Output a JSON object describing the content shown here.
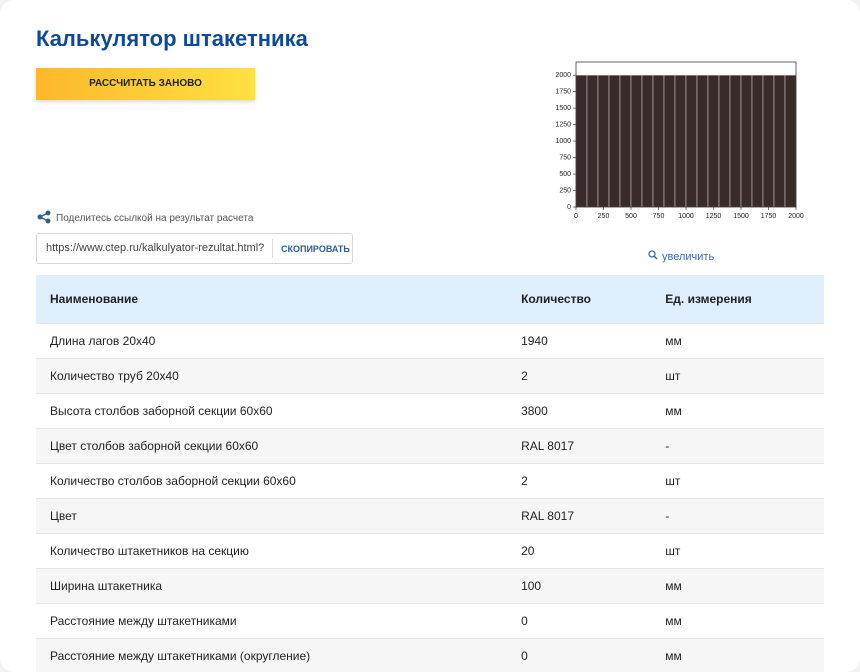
{
  "header": {
    "title": "Калькулятор штакетника",
    "button": "РАССЧИТАТЬ ЗАНОВО"
  },
  "share": {
    "label": "Поделитесь ссылкой на результат расчета",
    "url": "https://www.ctep.ru/kalkulyator-rezultat.html?",
    "copy": "СКОПИРОВАТЬ"
  },
  "zoom": "увеличить",
  "chart_data": {
    "type": "histogram",
    "bins": [
      0,
      100,
      200,
      300,
      400,
      500,
      600,
      700,
      800,
      900,
      1000,
      1100,
      1200,
      1300,
      1400,
      1500,
      1600,
      1700,
      1800,
      1900,
      2000
    ],
    "values": [
      2000,
      2000,
      2000,
      2000,
      2000,
      2000,
      2000,
      2000,
      2000,
      2000,
      2000,
      2000,
      2000,
      2000,
      2000,
      2000,
      2000,
      2000,
      2000,
      2000
    ],
    "color": "#3a2b2b",
    "xlim": [
      0,
      2000
    ],
    "ylim": [
      0,
      2200
    ],
    "xticks": [
      0,
      250,
      500,
      750,
      1000,
      1250,
      1500,
      1750,
      2000
    ],
    "yticks": [
      0,
      250,
      500,
      750,
      1000,
      1250,
      1500,
      1750,
      2000
    ]
  },
  "table": {
    "header": [
      "Наименование",
      "Количество",
      "Ед. измерения"
    ],
    "rows": [
      [
        "Длина лагов 20х40",
        "1940",
        "мм"
      ],
      [
        "Количество труб 20х40",
        "2",
        "шт"
      ],
      [
        "Высота столбов заборной секции 60х60",
        "3800",
        "мм"
      ],
      [
        "Цвет столбов заборной секции 60х60",
        "RAL 8017",
        "-"
      ],
      [
        "Количество столбов заборной секции 60х60",
        "2",
        "шт"
      ],
      [
        "Цвет",
        "RAL 8017",
        "-"
      ],
      [
        "Количество штакетников на секцию",
        "20",
        "шт"
      ],
      [
        "Ширина штакетника",
        "100",
        "мм"
      ],
      [
        "Расстояние между штакетниками",
        "0",
        "мм"
      ],
      [
        "Расстояние между штакетниками (округление)",
        "0",
        "мм"
      ]
    ]
  }
}
